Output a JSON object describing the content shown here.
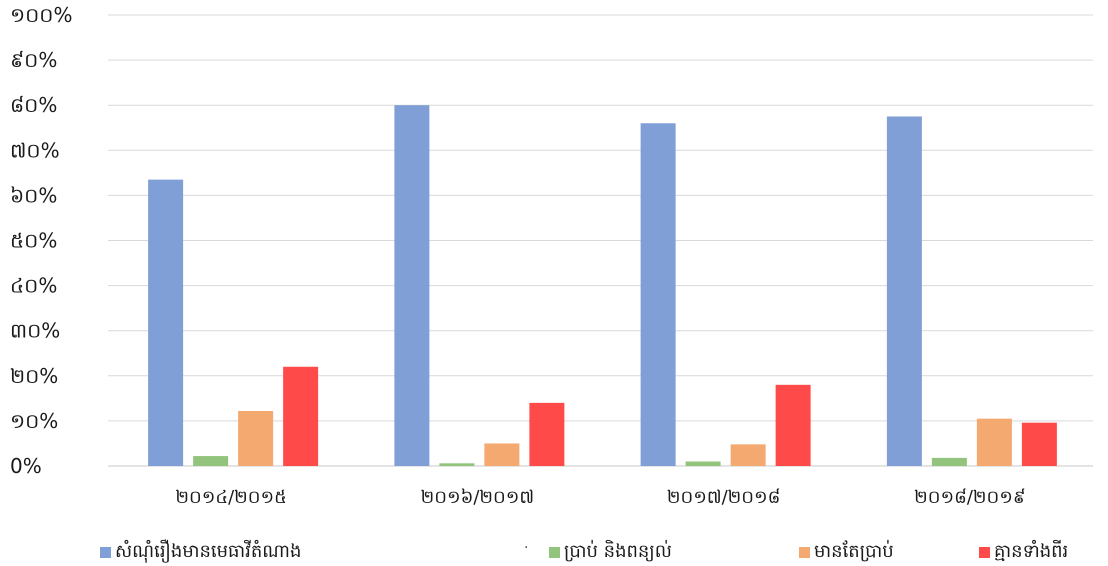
{
  "chart_data": {
    "type": "bar",
    "categories": [
      "២០១៤/២០១៥",
      "២០១៦/២០១៧",
      "២០១៧/២០១៨",
      "២០១៨/២០១៩"
    ],
    "series": [
      {
        "name": "សំណុំរឿងមានមេធាវីតំណាង",
        "color": "#7f9fd6",
        "values": [
          63.5,
          80,
          76,
          77.5
        ]
      },
      {
        "name": "ប្រាប់ និងពន្យល់",
        "color": "#93c47d",
        "values": [
          2.2,
          0.6,
          1.0,
          1.8
        ]
      },
      {
        "name": "មានតែប្រាប់",
        "color": "#f4a971",
        "values": [
          12.2,
          5.0,
          4.8,
          10.5
        ]
      },
      {
        "name": "គ្មានទាំងពីរ",
        "color": "#ff4a4a",
        "values": [
          22.0,
          14.0,
          18.0,
          9.6
        ]
      }
    ],
    "ylim": [
      0,
      100
    ],
    "yticks": [
      "0%",
      "១០%",
      "២០%",
      "៣០%",
      "៤០%",
      "៥០%",
      "៦០%",
      "៧០%",
      "៨០%",
      "៩០%",
      "១០០%"
    ],
    "grid": true,
    "legend_position": "bottom"
  },
  "legend_separator": "·"
}
